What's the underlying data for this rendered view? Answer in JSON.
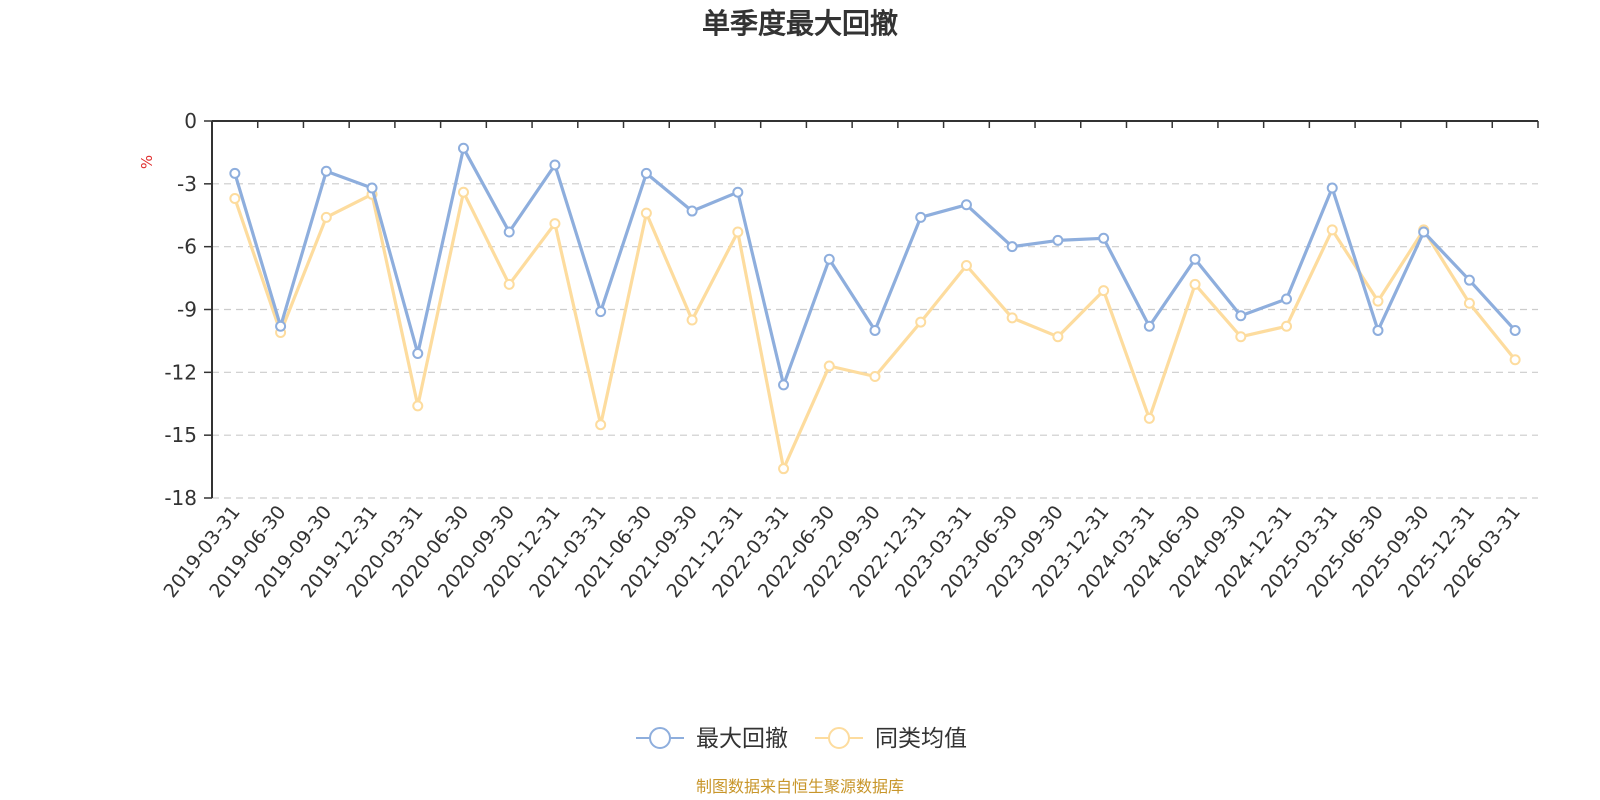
{
  "chart_data": {
    "type": "line",
    "title": "单季度最大回撤",
    "ylabel": "%",
    "xlabel": "",
    "ylim": [
      -18,
      0
    ],
    "yticks": [
      0,
      -3,
      -6,
      -9,
      -12,
      -15,
      -18
    ],
    "ytick_labels": [
      "0",
      "-3",
      "-6",
      "-9",
      "-12",
      "-15",
      "-18"
    ],
    "grid": true,
    "categories": [
      "2019-03-31",
      "2019-06-30",
      "2019-09-30",
      "2019-12-31",
      "2020-03-31",
      "2020-06-30",
      "2020-09-30",
      "2020-12-31",
      "2021-03-31",
      "2021-06-30",
      "2021-09-30",
      "2021-12-31",
      "2022-03-31",
      "2022-06-30",
      "2022-09-30",
      "2022-12-31",
      "2023-03-31",
      "2023-06-30",
      "2023-09-30",
      "2023-12-31",
      "2024-03-31",
      "2024-06-30",
      "2024-09-30",
      "2024-12-31",
      "2025-03-31",
      "2025-06-30",
      "2025-09-30",
      "2025-12-31",
      "2026-03-31"
    ],
    "series": [
      {
        "name": "最大回撤",
        "color": "#8eaedd",
        "values": [
          -2.5,
          -9.8,
          -2.4,
          -3.2,
          -11.1,
          -1.3,
          -5.3,
          -2.1,
          -9.1,
          -2.5,
          -4.3,
          -3.4,
          -12.6,
          -6.6,
          -10.0,
          -4.6,
          -4.0,
          -6.0,
          -5.7,
          -5.6,
          -9.8,
          -6.6,
          -9.3,
          -8.5,
          -3.2,
          -10.0,
          -5.3,
          -7.6,
          -10.0
        ]
      },
      {
        "name": "同类均值",
        "color": "#fddc9e",
        "values": [
          -3.7,
          -10.1,
          -4.6,
          -3.5,
          -13.6,
          -3.4,
          -7.8,
          -4.9,
          -14.5,
          -4.4,
          -9.5,
          -5.3,
          -16.6,
          -11.7,
          -12.2,
          -9.6,
          -6.9,
          -9.4,
          -10.3,
          -8.1,
          -14.2,
          -7.8,
          -10.3,
          -9.8,
          -5.2,
          -8.6,
          -5.2,
          -8.7,
          -11.4
        ]
      }
    ],
    "legend_position": "bottom-center",
    "unit_color": "#e03030"
  },
  "footer": {
    "text": "制图数据来自恒生聚源数据库",
    "color": "#c8962a"
  }
}
